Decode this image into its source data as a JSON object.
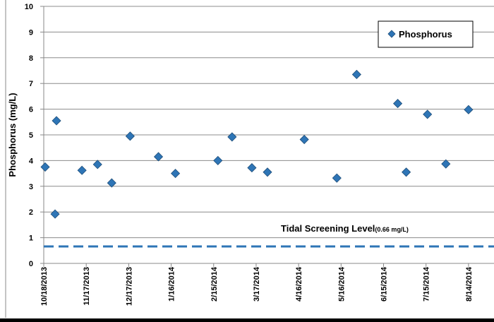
{
  "chart_data": {
    "type": "scatter",
    "title": "",
    "xlabel": "",
    "ylabel": "Phosphorus (mg/L)",
    "ylim": [
      0,
      10
    ],
    "xlim": [
      "2013-10-18",
      "2014-09-01"
    ],
    "grid": true,
    "legend_position": "top-right",
    "y_ticks": [
      "0",
      "1",
      "2",
      "3",
      "4",
      "5",
      "6",
      "7",
      "8",
      "9",
      "10"
    ],
    "x_ticks": [
      {
        "date": "2013-10-18",
        "label": "10/18/2013"
      },
      {
        "date": "2013-11-17",
        "label": "11/17/2013"
      },
      {
        "date": "2013-12-17",
        "label": "12/17/2013"
      },
      {
        "date": "2014-01-16",
        "label": "1/16/2014"
      },
      {
        "date": "2014-02-15",
        "label": "2/15/2014"
      },
      {
        "date": "2014-03-17",
        "label": "3/17/2014"
      },
      {
        "date": "2014-04-16",
        "label": "4/16/2014"
      },
      {
        "date": "2014-05-16",
        "label": "5/16/2014"
      },
      {
        "date": "2014-06-15",
        "label": "6/15/2014"
      },
      {
        "date": "2014-07-15",
        "label": "7/15/2014"
      },
      {
        "date": "2014-08-14",
        "label": "8/14/2014"
      }
    ],
    "series": [
      {
        "name": "Phosphorus",
        "marker": "diamond",
        "color": "#2E75B6",
        "points": [
          {
            "x": "2013-10-19",
            "y": 3.75
          },
          {
            "x": "2013-10-26",
            "y": 1.92
          },
          {
            "x": "2013-10-27",
            "y": 5.55
          },
          {
            "x": "2013-11-14",
            "y": 3.62
          },
          {
            "x": "2013-11-25",
            "y": 3.85
          },
          {
            "x": "2013-12-05",
            "y": 3.13
          },
          {
            "x": "2013-12-18",
            "y": 4.95
          },
          {
            "x": "2014-01-07",
            "y": 4.15
          },
          {
            "x": "2014-01-19",
            "y": 3.5
          },
          {
            "x": "2014-02-18",
            "y": 4.0
          },
          {
            "x": "2014-02-28",
            "y": 4.92
          },
          {
            "x": "2014-03-14",
            "y": 3.72
          },
          {
            "x": "2014-03-25",
            "y": 3.55
          },
          {
            "x": "2014-04-20",
            "y": 4.82
          },
          {
            "x": "2014-05-13",
            "y": 3.32
          },
          {
            "x": "2014-05-27",
            "y": 7.35
          },
          {
            "x": "2014-06-25",
            "y": 6.22
          },
          {
            "x": "2014-07-01",
            "y": 3.55
          },
          {
            "x": "2014-07-16",
            "y": 5.8
          },
          {
            "x": "2014-07-29",
            "y": 3.87
          },
          {
            "x": "2014-08-14",
            "y": 5.98
          }
        ]
      }
    ],
    "reference_line": {
      "value": 0.66,
      "style": "dashed",
      "color": "#2E75B6",
      "label": "Tidal Screening Level",
      "label_unit": "(0.66 mg/L)"
    }
  }
}
